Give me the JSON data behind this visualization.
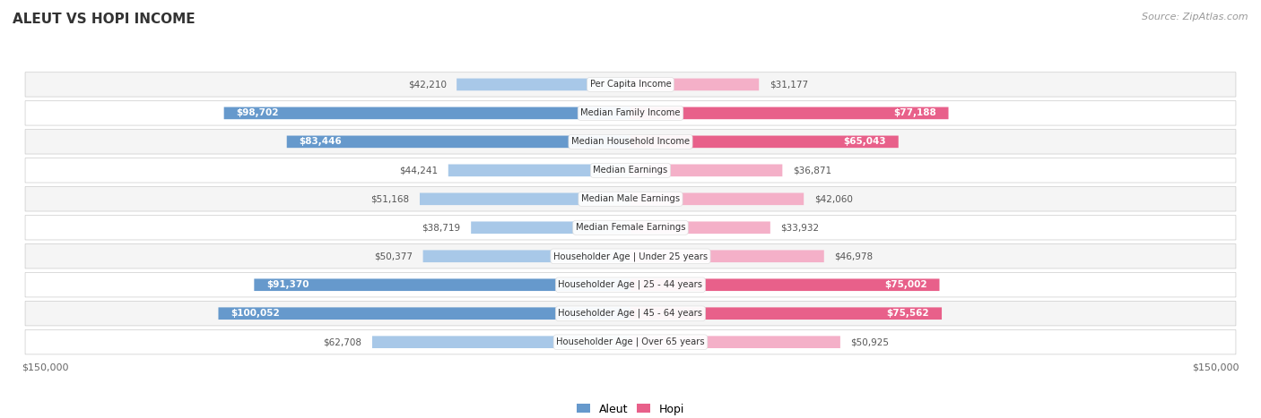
{
  "title": "ALEUT VS HOPI INCOME",
  "source": "Source: ZipAtlas.com",
  "categories": [
    "Per Capita Income",
    "Median Family Income",
    "Median Household Income",
    "Median Earnings",
    "Median Male Earnings",
    "Median Female Earnings",
    "Householder Age | Under 25 years",
    "Householder Age | 25 - 44 years",
    "Householder Age | 45 - 64 years",
    "Householder Age | Over 65 years"
  ],
  "aleut_values": [
    42210,
    98702,
    83446,
    44241,
    51168,
    38719,
    50377,
    91370,
    100052,
    62708
  ],
  "hopi_values": [
    31177,
    77188,
    65043,
    36871,
    42060,
    33932,
    46978,
    75002,
    75562,
    50925
  ],
  "aleut_color_light": "#a8c8e8",
  "aleut_color_dark": "#6699cc",
  "hopi_color_light": "#f4b0c8",
  "hopi_color_dark": "#e8608a",
  "max_value": 150000,
  "bg_color": "#ffffff",
  "row_bg_odd": "#f5f5f5",
  "row_bg_even": "#ffffff",
  "label_color": "#555555",
  "title_color": "#333333",
  "inside_label_threshold": 65000
}
